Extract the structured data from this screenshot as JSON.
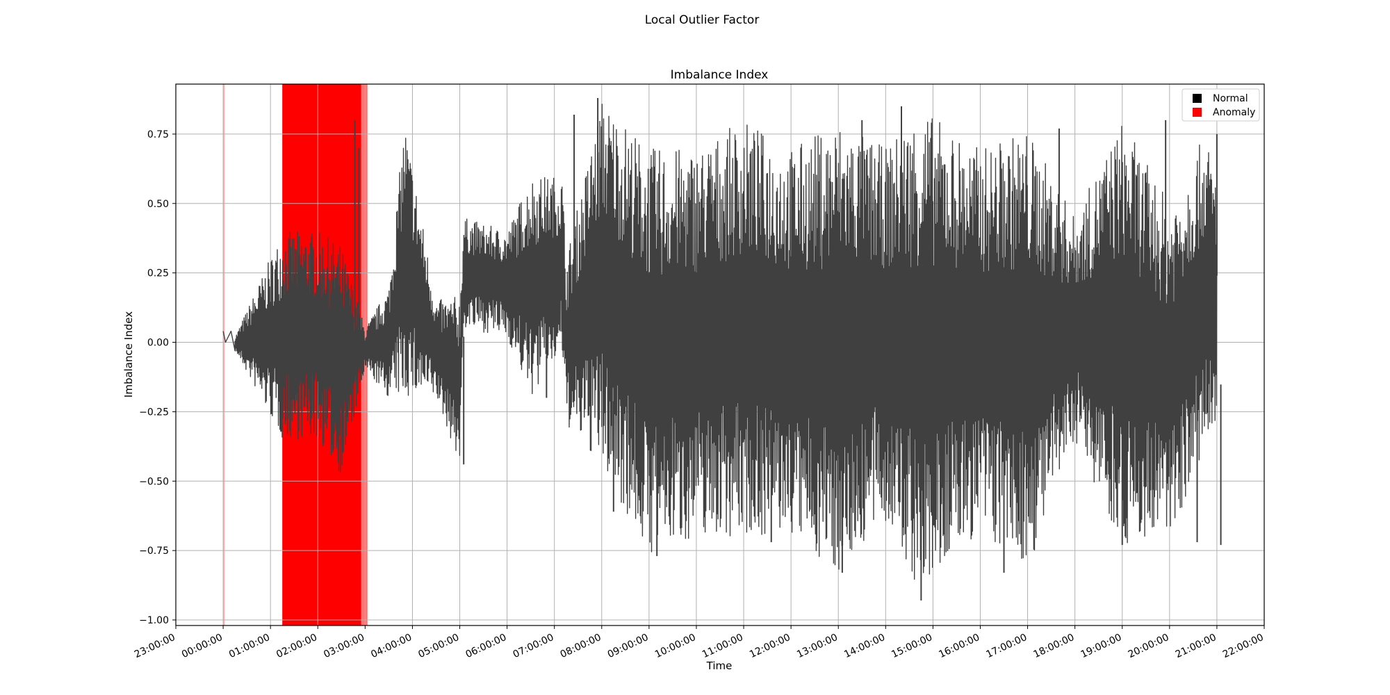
{
  "figure": {
    "suptitle": "Local Outlier Factor"
  },
  "chart_data": {
    "type": "line",
    "title": "Imbalance Index",
    "xlabel": "Time",
    "ylabel": "Imbalance Index",
    "xlim": [
      "23:00:00",
      "22:00:00"
    ],
    "ylim": [
      -1.02,
      0.93
    ],
    "x_ticks": [
      "23:00:00",
      "00:00:00",
      "01:00:00",
      "02:00:00",
      "03:00:00",
      "04:00:00",
      "05:00:00",
      "06:00:00",
      "07:00:00",
      "08:00:00",
      "09:00:00",
      "10:00:00",
      "11:00:00",
      "12:00:00",
      "13:00:00",
      "14:00:00",
      "15:00:00",
      "16:00:00",
      "17:00:00",
      "18:00:00",
      "19:00:00",
      "20:00:00",
      "21:00:00",
      "22:00:00"
    ],
    "y_ticks": [
      {
        "value": 0.75,
        "label": "0.75"
      },
      {
        "value": 0.5,
        "label": "0.50"
      },
      {
        "value": 0.25,
        "label": "0.25"
      },
      {
        "value": 0.0,
        "label": "0.00"
      },
      {
        "value": -0.25,
        "label": "−0.25"
      },
      {
        "value": -0.5,
        "label": "−0.50"
      },
      {
        "value": -0.75,
        "label": "−0.75"
      },
      {
        "value": -1.0,
        "label": "−1.00"
      }
    ],
    "grid": true,
    "legend_position": "top-right",
    "legend": [
      {
        "label": "Normal",
        "color": "#000000"
      },
      {
        "label": "Anomaly",
        "color": "#ff0000"
      }
    ],
    "line_color": "#404040",
    "anomaly_regions": [
      {
        "start": "00:00:00",
        "end": "00:02:00",
        "alpha": 0.3
      },
      {
        "start": "01:15:00",
        "end": "02:55:00",
        "alpha": 1.0
      },
      {
        "start": "02:55:00",
        "end": "03:03:00",
        "alpha": 0.55
      }
    ],
    "envelope": [
      {
        "time": "00:00:00",
        "low": 0.0,
        "high": 0.04
      },
      {
        "time": "00:15:00",
        "low": -0.03,
        "high": 0.02
      },
      {
        "time": "01:15:00",
        "low": -0.35,
        "high": 0.4
      },
      {
        "time": "02:00:00",
        "low": -0.35,
        "high": 0.4
      },
      {
        "time": "02:30:00",
        "low": -0.48,
        "high": 0.35
      },
      {
        "time": "03:00:00",
        "low": -0.1,
        "high": 0.05
      },
      {
        "time": "03:30:00",
        "low": -0.2,
        "high": 0.2
      },
      {
        "time": "03:50:00",
        "low": -0.2,
        "high": 0.8
      },
      {
        "time": "04:30:00",
        "low": -0.2,
        "high": 0.15
      },
      {
        "time": "05:00:00",
        "low": -0.44,
        "high": 0.17
      },
      {
        "time": "05:05:00",
        "low": 0.05,
        "high": 0.45
      },
      {
        "time": "06:00:00",
        "low": 0.02,
        "high": 0.4
      },
      {
        "time": "06:30:00",
        "low": -0.2,
        "high": 0.6
      },
      {
        "time": "07:10:00",
        "low": -0.05,
        "high": 0.6
      },
      {
        "time": "07:15:00",
        "low": -0.3,
        "high": 0.3
      },
      {
        "time": "08:00:00",
        "low": -0.45,
        "high": 0.88
      },
      {
        "time": "09:00:00",
        "low": -0.77,
        "high": 0.7
      },
      {
        "time": "10:00:00",
        "low": -0.7,
        "high": 0.7
      },
      {
        "time": "11:00:00",
        "low": -0.7,
        "high": 0.8
      },
      {
        "time": "12:00:00",
        "low": -0.7,
        "high": 0.7
      },
      {
        "time": "13:00:00",
        "low": -0.83,
        "high": 0.8
      },
      {
        "time": "14:00:00",
        "low": -0.65,
        "high": 0.7
      },
      {
        "time": "14:45:00",
        "low": -0.93,
        "high": 0.85
      },
      {
        "time": "15:30:00",
        "low": -0.75,
        "high": 0.75
      },
      {
        "time": "16:00:00",
        "low": -0.7,
        "high": 0.7
      },
      {
        "time": "17:00:00",
        "low": -0.82,
        "high": 0.77
      },
      {
        "time": "18:00:00",
        "low": -0.35,
        "high": 0.45
      },
      {
        "time": "19:00:00",
        "low": -0.73,
        "high": 0.8
      },
      {
        "time": "20:00:00",
        "low": -0.7,
        "high": 0.5
      },
      {
        "time": "20:45:00",
        "low": -0.4,
        "high": 0.75
      },
      {
        "time": "21:00:00",
        "low": -0.38,
        "high": 0.6
      }
    ],
    "spikes": [
      {
        "time": "02:47:00",
        "value": 0.8
      },
      {
        "time": "02:52:00",
        "value": 0.7
      },
      {
        "time": "05:05:00",
        "value": -0.44
      },
      {
        "time": "06:50:00",
        "value": -0.2
      },
      {
        "time": "07:25:00",
        "value": 0.82
      },
      {
        "time": "07:55:00",
        "value": 0.88
      },
      {
        "time": "08:15:00",
        "value": -0.61
      },
      {
        "time": "09:10:00",
        "value": -0.77
      },
      {
        "time": "11:35:00",
        "value": -0.72
      },
      {
        "time": "13:05:00",
        "value": -0.83
      },
      {
        "time": "13:30:00",
        "value": 0.8
      },
      {
        "time": "14:20:00",
        "value": 0.85
      },
      {
        "time": "14:45:00",
        "value": -0.93
      },
      {
        "time": "16:30:00",
        "value": -0.83
      },
      {
        "time": "17:40:00",
        "value": 0.77
      },
      {
        "time": "19:00:00",
        "value": -0.73
      },
      {
        "time": "19:55:00",
        "value": 0.8
      },
      {
        "time": "20:35:00",
        "value": -0.72
      },
      {
        "time": "21:00:00",
        "value": 0.75
      },
      {
        "time": "21:05:00",
        "value": -0.73
      }
    ]
  }
}
